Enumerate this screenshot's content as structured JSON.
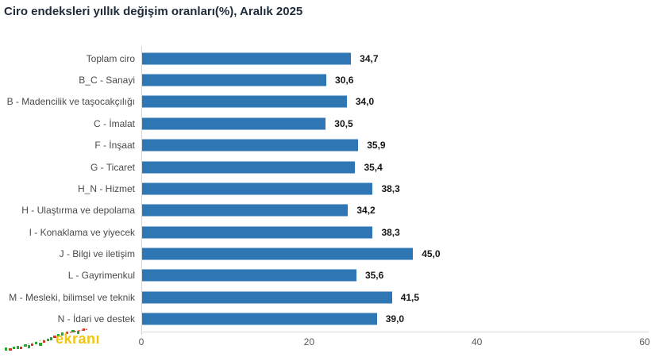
{
  "title": "Ciro endeksleri yıllık değişim oranları(%), Aralık 2025",
  "chart_data": {
    "type": "bar",
    "orientation": "horizontal",
    "title": "Ciro endeksleri yıllık değişim oranları(%), Aralık 2025",
    "categories": [
      "Toplam ciro",
      "B_C - Sanayi",
      "B - Madencilik ve taşocakçılığı",
      "C - İmalat",
      "F - İnşaat",
      "G - Ticaret",
      "H_N - Hizmet",
      "H - Ulaştırma ve depolama",
      "I - Konaklama ve yiyecek",
      "J - Bilgi ve iletişim",
      "L - Gayrimenkul",
      "M - Mesleki, bilimsel ve teknik",
      "N - İdari ve destek"
    ],
    "values": [
      34.7,
      30.6,
      34.0,
      30.5,
      35.9,
      35.4,
      38.3,
      34.2,
      38.3,
      45.0,
      35.6,
      41.5,
      39.0
    ],
    "value_labels": [
      "34,7",
      "30,6",
      "34,0",
      "30,5",
      "35,9",
      "35,4",
      "38,3",
      "34,2",
      "38,3",
      "45,0",
      "35,6",
      "41,5",
      "39,0"
    ],
    "xlabel": "",
    "ylabel": "",
    "xlim": [
      0,
      60
    ],
    "x_ticks": [
      "0",
      "20",
      "40",
      "60"
    ],
    "grid": false,
    "legend_position": "none",
    "bar_color": "#2f76b5"
  },
  "colors": {
    "bar": "#2f76b5",
    "title_text": "#1e2b3a",
    "category_text": "#4a4a4a",
    "value_text": "#161616",
    "tick_text": "#595959",
    "axis_line": "#d6d6d6",
    "watermark_yellow": "#f2c511",
    "watermark_green": "#2aa52e",
    "watermark_red": "#d33a2c"
  },
  "watermark": {
    "text": "ekranı"
  }
}
